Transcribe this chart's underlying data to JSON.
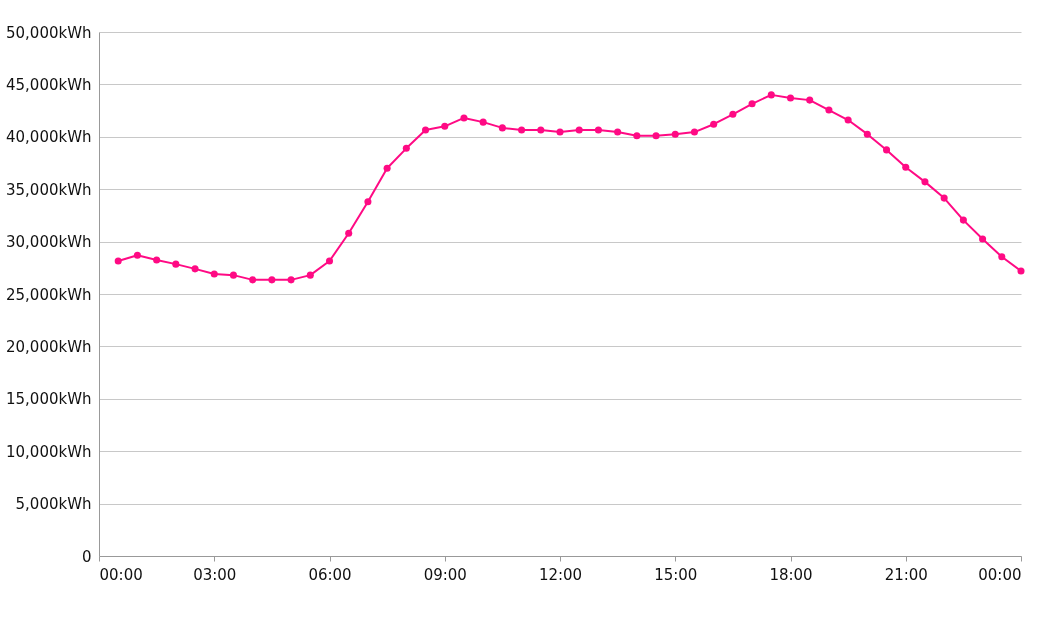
{
  "chart_data": {
    "type": "line",
    "x": [
      0.5,
      1,
      1.5,
      2,
      2.5,
      3,
      3.5,
      4,
      4.5,
      5,
      5.5,
      6,
      6.5,
      7,
      7.5,
      8,
      8.5,
      9,
      9.5,
      10,
      10.5,
      11,
      11.5,
      12,
      12.5,
      13,
      13.5,
      14,
      14.5,
      15,
      15.5,
      16,
      16.5,
      17,
      17.5,
      18,
      18.5,
      19,
      19.5,
      20,
      20.5,
      21,
      21.5,
      22,
      22.5,
      23,
      23.5,
      24
    ],
    "series": [
      {
        "color": "#ff0a84",
        "values": [
          28150,
          28700,
          28250,
          27850,
          27400,
          26900,
          26800,
          26350,
          26350,
          26350,
          26800,
          28150,
          30800,
          33800,
          37000,
          38900,
          40650,
          41000,
          41800,
          41400,
          40850,
          40650,
          40650,
          40450,
          40650,
          40650,
          40450,
          40100,
          40100,
          40250,
          40450,
          41200,
          42150,
          43150,
          44000,
          43700,
          43500,
          42550,
          41600,
          40250,
          38750,
          37100,
          35700,
          34150,
          32050,
          30250,
          28550,
          27200
        ]
      }
    ],
    "xlim": [
      0,
      24
    ],
    "xticks": [
      {
        "value": 0,
        "label": "00:00"
      },
      {
        "value": 3,
        "label": "03:00"
      },
      {
        "value": 6,
        "label": "06:00"
      },
      {
        "value": 9,
        "label": "09:00"
      },
      {
        "value": 12,
        "label": "12:00"
      },
      {
        "value": 15,
        "label": "15:00"
      },
      {
        "value": 18,
        "label": "18:00"
      },
      {
        "value": 21,
        "label": "21:00"
      },
      {
        "value": 24,
        "label": "00:00"
      }
    ],
    "ylim": [
      0,
      50000
    ],
    "yticks": [
      0,
      {
        "value": 5000,
        "label": "5,000kWh"
      },
      {
        "value": 10000,
        "label": "10,000kWh"
      },
      {
        "value": 15000,
        "label": "15,000kWh"
      },
      {
        "value": 20000,
        "label": "20,000kWh"
      },
      {
        "value": 25000,
        "label": "25,000kWh"
      },
      {
        "value": 30000,
        "label": "30,000kWh"
      },
      {
        "value": 35000,
        "label": "35,000kWh"
      },
      {
        "value": 40000,
        "label": "40,000kWh"
      },
      {
        "value": 45000,
        "label": "45,000kWh"
      },
      {
        "value": 50000,
        "label": "50,000kWh"
      }
    ],
    "grid": "y",
    "marker": "circle",
    "line_style": "solid"
  }
}
